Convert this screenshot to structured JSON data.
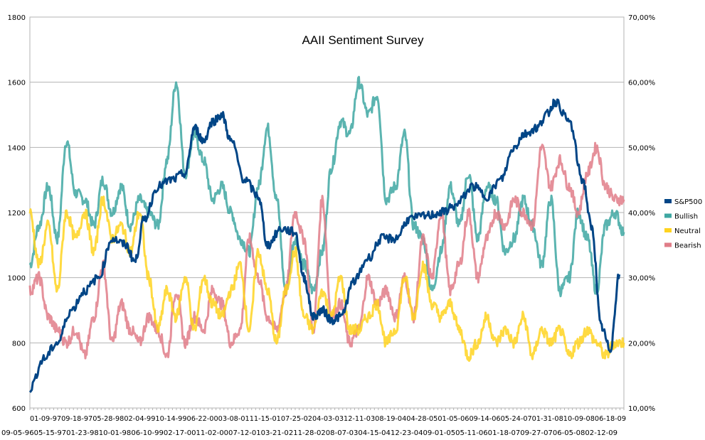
{
  "chart_data": {
    "type": "line",
    "title": "AAII Sentiment Survey",
    "xlabel": "",
    "ylabel": "",
    "y_left": {
      "min": 600,
      "max": 1800,
      "ticks": [
        "600",
        "800",
        "1000",
        "1200",
        "1400",
        "1600",
        "1800"
      ]
    },
    "y_right": {
      "min": 10,
      "max": 70,
      "ticks": [
        "10,00%",
        "20,00%",
        "30,00%",
        "40,00%",
        "50,00%",
        "60,00%",
        "70,00%"
      ]
    },
    "grid": true,
    "legend": "right",
    "x_labels_row1": "01-09-9709-18-9705-28-9802-04-9910-14-9906-22-0003-08-0111-15-0107-25-0204-03-0312-11-0308-19-0404-28-0501-05-0609-14-0605-24-0701-31-0810-09-0806-18-09",
    "x_labels_row2": "09-05-9605-15-9701-23-9810-01-9806-10-9902-17-0011-02-0007-12-0103-21-0211-28-0208-07-0304-15-0412-23-0409-01-0505-11-0601-18-0709-27-0706-05-0802-12-09",
    "x_range": [
      "1996-07",
      "2009-06"
    ],
    "series": [
      {
        "name": "S&P500",
        "axis": "left",
        "color": "#004586",
        "x": [
          1996.5,
          1996.8,
          1997.1,
          1997.4,
          1997.7,
          1998.0,
          1998.3,
          1998.6,
          1998.8,
          1999.0,
          1999.3,
          1999.6,
          1999.9,
          2000.1,
          2000.3,
          2000.5,
          2000.7,
          2000.9,
          2001.2,
          2001.5,
          2001.7,
          2002.0,
          2002.3,
          2002.5,
          2002.7,
          2002.9,
          2003.1,
          2003.3,
          2003.6,
          2003.9,
          2004.2,
          2004.5,
          2004.8,
          2005.2,
          2005.5,
          2005.8,
          2006.2,
          2006.5,
          2006.8,
          2007.1,
          2007.3,
          2007.6,
          2007.8,
          2008.0,
          2008.3,
          2008.6,
          2008.8,
          2009.0,
          2009.2,
          2009.4
        ],
        "y": [
          660,
          750,
          800,
          900,
          960,
          1000,
          1120,
          1100,
          1050,
          1180,
          1280,
          1300,
          1320,
          1460,
          1420,
          1480,
          1500,
          1420,
          1300,
          1250,
          1100,
          1150,
          1140,
          1000,
          880,
          900,
          870,
          880,
          990,
          1060,
          1120,
          1120,
          1180,
          1190,
          1200,
          1220,
          1280,
          1250,
          1300,
          1400,
          1440,
          1460,
          1500,
          1540,
          1480,
          1300,
          1150,
          850,
          780,
          1010
        ]
      },
      {
        "name": "Bullish",
        "axis": "right",
        "color": "#579d1c",
        "stroke": "#3ea7a2",
        "x": [
          1996.5,
          1996.7,
          1996.9,
          1997.1,
          1997.3,
          1997.5,
          1997.7,
          1997.9,
          1998.1,
          1998.3,
          1998.5,
          1998.7,
          1998.9,
          1999.1,
          1999.3,
          1999.5,
          1999.7,
          1999.9,
          2000.1,
          2000.3,
          2000.5,
          2000.7,
          2000.9,
          2001.1,
          2001.3,
          2001.5,
          2001.7,
          2001.9,
          2002.1,
          2002.3,
          2002.5,
          2002.7,
          2002.9,
          2003.1,
          2003.3,
          2003.5,
          2003.7,
          2003.9,
          2004.1,
          2004.3,
          2004.5,
          2004.7,
          2004.9,
          2005.1,
          2005.3,
          2005.5,
          2005.7,
          2005.9,
          2006.1,
          2006.3,
          2006.5,
          2006.7,
          2006.9,
          2007.1,
          2007.3,
          2007.5,
          2007.7,
          2007.9,
          2008.1,
          2008.3,
          2008.5,
          2008.7,
          2008.9,
          2009.1,
          2009.3,
          2009.5
        ],
        "y": [
          32,
          38,
          44,
          36,
          51,
          43,
          42,
          38,
          45,
          40,
          44,
          38,
          42,
          40,
          38,
          48,
          60,
          46,
          52,
          48,
          42,
          44,
          40,
          36,
          34,
          44,
          53,
          42,
          28,
          36,
          32,
          28,
          34,
          47,
          54,
          52,
          60,
          55,
          58,
          42,
          44,
          52,
          38,
          36,
          28,
          34,
          44,
          38,
          46,
          36,
          44,
          42,
          34,
          36,
          42,
          38,
          32,
          42,
          28,
          30,
          40,
          36,
          28,
          38,
          40,
          37
        ]
      },
      {
        "name": "Neutral",
        "axis": "right",
        "color": "#ffd320",
        "x": [
          1996.5,
          1996.7,
          1996.9,
          1997.1,
          1997.3,
          1997.5,
          1997.7,
          1997.9,
          1998.1,
          1998.3,
          1998.5,
          1998.7,
          1998.9,
          1999.1,
          1999.3,
          1999.5,
          1999.7,
          1999.9,
          2000.1,
          2000.3,
          2000.5,
          2000.7,
          2000.9,
          2001.1,
          2001.3,
          2001.5,
          2001.7,
          2001.9,
          2002.1,
          2002.3,
          2002.5,
          2002.7,
          2002.9,
          2003.1,
          2003.3,
          2003.5,
          2003.7,
          2003.9,
          2004.1,
          2004.3,
          2004.5,
          2004.7,
          2004.9,
          2005.1,
          2005.3,
          2005.5,
          2005.7,
          2005.9,
          2006.1,
          2006.3,
          2006.5,
          2006.7,
          2006.9,
          2007.1,
          2007.3,
          2007.5,
          2007.7,
          2007.9,
          2008.1,
          2008.3,
          2008.5,
          2008.7,
          2008.9,
          2009.1,
          2009.3,
          2009.5
        ],
        "y": [
          40,
          32,
          38,
          28,
          40,
          36,
          40,
          34,
          42,
          36,
          38,
          34,
          40,
          30,
          22,
          28,
          24,
          30,
          22,
          30,
          26,
          24,
          28,
          32,
          22,
          34,
          28,
          20,
          28,
          34,
          24,
          22,
          28,
          24,
          30,
          22,
          22,
          24,
          26,
          20,
          22,
          30,
          24,
          32,
          26,
          24,
          26,
          22,
          18,
          20,
          24,
          20,
          22,
          20,
          24,
          18,
          22,
          20,
          22,
          18,
          20,
          22,
          20,
          18,
          20,
          20
        ]
      },
      {
        "name": "Bearish",
        "axis": "right",
        "color": "#ff420e",
        "stroke": "#e07d88",
        "x": [
          1996.5,
          1996.7,
          1996.9,
          1997.1,
          1997.3,
          1997.5,
          1997.7,
          1997.9,
          1998.1,
          1998.3,
          1998.5,
          1998.7,
          1998.9,
          1999.1,
          1999.3,
          1999.5,
          1999.7,
          1999.9,
          2000.1,
          2000.3,
          2000.5,
          2000.7,
          2000.9,
          2001.1,
          2001.3,
          2001.5,
          2001.7,
          2001.9,
          2002.1,
          2002.3,
          2002.5,
          2002.7,
          2002.9,
          2003.1,
          2003.3,
          2003.5,
          2003.7,
          2003.9,
          2004.1,
          2004.3,
          2004.5,
          2004.7,
          2004.9,
          2005.1,
          2005.3,
          2005.5,
          2005.7,
          2005.9,
          2006.1,
          2006.3,
          2006.5,
          2006.7,
          2006.9,
          2007.1,
          2007.3,
          2007.5,
          2007.7,
          2007.9,
          2008.1,
          2008.3,
          2008.5,
          2008.7,
          2008.9,
          2009.1,
          2009.3,
          2009.5
        ],
        "y": [
          28,
          30,
          24,
          22,
          20,
          22,
          18,
          24,
          32,
          20,
          26,
          22,
          20,
          24,
          22,
          18,
          28,
          20,
          24,
          22,
          28,
          26,
          20,
          22,
          36,
          30,
          24,
          22,
          28,
          40,
          36,
          22,
          42,
          24,
          26,
          20,
          22,
          30,
          26,
          28,
          24,
          30,
          24,
          36,
          30,
          40,
          28,
          32,
          40,
          30,
          36,
          40,
          38,
          42,
          40,
          38,
          50,
          44,
          48,
          44,
          40,
          46,
          50,
          44,
          42,
          42
        ]
      }
    ]
  }
}
